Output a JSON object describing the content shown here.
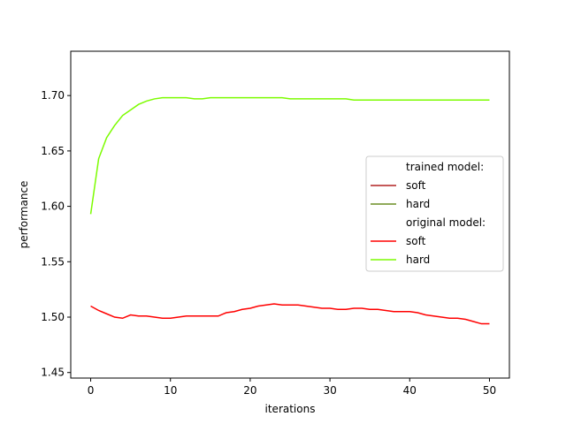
{
  "chart_data": {
    "type": "line",
    "title": "",
    "xlabel": "iterations",
    "ylabel": "performance",
    "xlim": [
      -2.5,
      52.5
    ],
    "ylim": [
      1.445,
      1.74
    ],
    "xticks": [
      0,
      10,
      20,
      30,
      40,
      50
    ],
    "xtick_labels": [
      "0",
      "10",
      "20",
      "30",
      "40",
      "50"
    ],
    "yticks": [
      1.45,
      1.5,
      1.55,
      1.6,
      1.65,
      1.7
    ],
    "ytick_labels": [
      "1.45",
      "1.50",
      "1.55",
      "1.60",
      "1.65",
      "1.70"
    ],
    "grid": false,
    "legend_placement": "center-right",
    "legend": [
      {
        "label": "trained model:",
        "color": null
      },
      {
        "label": "soft",
        "color": "#b22222"
      },
      {
        "label": "hard",
        "color": "#6b8e23"
      },
      {
        "label": "original model:",
        "color": null
      },
      {
        "label": "soft",
        "color": "#ff0000"
      },
      {
        "label": "hard",
        "color": "#7cfc00"
      }
    ],
    "x": [
      0,
      1,
      2,
      3,
      4,
      5,
      6,
      7,
      8,
      9,
      10,
      11,
      12,
      13,
      14,
      15,
      16,
      17,
      18,
      19,
      20,
      21,
      22,
      23,
      24,
      25,
      26,
      27,
      28,
      29,
      30,
      31,
      32,
      33,
      34,
      35,
      36,
      37,
      38,
      39,
      40,
      41,
      42,
      43,
      44,
      45,
      46,
      47,
      48,
      49,
      50
    ],
    "series": [
      {
        "name": "soft",
        "group": "original model",
        "color": "#ff0000",
        "values": [
          1.51,
          1.506,
          1.503,
          1.5,
          1.499,
          1.502,
          1.501,
          1.501,
          1.5,
          1.499,
          1.499,
          1.5,
          1.501,
          1.501,
          1.501,
          1.501,
          1.501,
          1.504,
          1.505,
          1.507,
          1.508,
          1.51,
          1.511,
          1.512,
          1.511,
          1.511,
          1.511,
          1.51,
          1.509,
          1.508,
          1.508,
          1.507,
          1.507,
          1.508,
          1.508,
          1.507,
          1.507,
          1.506,
          1.505,
          1.505,
          1.505,
          1.504,
          1.502,
          1.501,
          1.5,
          1.499,
          1.499,
          1.498,
          1.496,
          1.494,
          1.494
        ]
      },
      {
        "name": "hard",
        "group": "original model",
        "color": "#7cfc00",
        "values": [
          1.593,
          1.643,
          1.662,
          1.673,
          1.682,
          1.687,
          1.692,
          1.695,
          1.697,
          1.698,
          1.698,
          1.698,
          1.698,
          1.697,
          1.697,
          1.698,
          1.698,
          1.698,
          1.698,
          1.698,
          1.698,
          1.698,
          1.698,
          1.698,
          1.698,
          1.697,
          1.697,
          1.697,
          1.697,
          1.697,
          1.697,
          1.697,
          1.697,
          1.696,
          1.696,
          1.696,
          1.696,
          1.696,
          1.696,
          1.696,
          1.696,
          1.696,
          1.696,
          1.696,
          1.696,
          1.696,
          1.696,
          1.696,
          1.696,
          1.696,
          1.696
        ]
      }
    ]
  }
}
